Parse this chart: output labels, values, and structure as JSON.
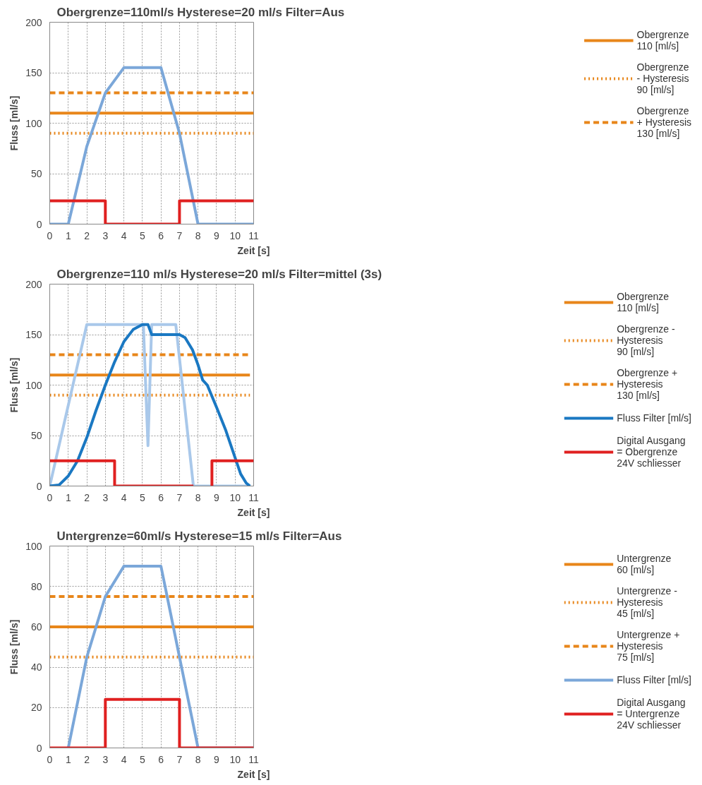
{
  "chart_data": [
    {
      "type": "line",
      "title": "Obergrenze=110ml/s   Hysterese=20 ml/s   Filter=Aus",
      "xlabel": "Zeit [s]",
      "ylabel": "Fluss [ml/s]",
      "xlim": [
        0,
        11
      ],
      "ylim": [
        0,
        200
      ],
      "xticks": [
        0,
        1,
        2,
        3,
        4,
        5,
        6,
        7,
        8,
        9,
        10,
        11
      ],
      "yticks": [
        0,
        50,
        100,
        150,
        200
      ],
      "grid": true,
      "legend": "right",
      "series": [
        {
          "name": "Obergrenze\n110 [ml/s]",
          "color": "#e8861a",
          "line_style": "solid",
          "x": [
            0,
            11
          ],
          "values": [
            110,
            110
          ]
        },
        {
          "name": "Obergrenze\n- Hysteresis\n90 [ml/s]",
          "color": "#e8861a",
          "line_style": "dotted",
          "x": [
            0,
            11
          ],
          "values": [
            90,
            90
          ]
        },
        {
          "name": "Obergrenze\n+ Hysteresis\n130 [ml/s]",
          "color": "#e8861a",
          "line_style": "dashed",
          "x": [
            0,
            11
          ],
          "values": [
            130,
            130
          ]
        },
        {
          "color": "#7ba7d9",
          "line_style": "solid",
          "x": [
            0,
            1,
            2,
            3,
            4,
            6,
            7,
            8,
            11
          ],
          "values": [
            0,
            0,
            77,
            130,
            155,
            155,
            90,
            0,
            0
          ]
        },
        {
          "color": "#e02020",
          "line_style": "solid",
          "x": [
            0,
            3,
            3,
            7,
            7,
            11
          ],
          "values": [
            23,
            23,
            0,
            0,
            23,
            23
          ]
        }
      ]
    },
    {
      "type": "line",
      "title": "Obergrenze=110 ml/s  Hysterese=20 ml/s  Filter=mittel (3s)",
      "xlabel": "Zeit [s]",
      "ylabel": "Fluss [ml/s]",
      "xlim": [
        0,
        11
      ],
      "ylim": [
        0,
        200
      ],
      "xticks": [
        0,
        1,
        2,
        3,
        4,
        5,
        6,
        7,
        8,
        9,
        10,
        11
      ],
      "yticks": [
        0,
        50,
        100,
        150,
        200
      ],
      "grid": true,
      "legend": "right",
      "series": [
        {
          "name": "Obergrenze\n110 [ml/s]",
          "color": "#e8861a",
          "line_style": "solid",
          "x": [
            0,
            10.8
          ],
          "values": [
            110,
            110
          ]
        },
        {
          "name": "Obergrenze -\nHysteresis\n90 [ml/s]",
          "color": "#e8861a",
          "line_style": "dotted",
          "x": [
            0,
            10.8
          ],
          "values": [
            90,
            90
          ]
        },
        {
          "name": "Obergrenze +\nHysteresis\n130 [ml/s]",
          "color": "#e8861a",
          "line_style": "dashed",
          "x": [
            0,
            10.8
          ],
          "values": [
            130,
            130
          ]
        },
        {
          "color": "#a9c8ea",
          "line_style": "solid",
          "x": [
            0,
            2,
            5.05,
            5.3,
            5.5,
            6.8,
            7.75,
            10.8
          ],
          "values": [
            0,
            160,
            160,
            40,
            160,
            160,
            0,
            0
          ]
        },
        {
          "name": "Fluss Filter [ml/s]",
          "color": "#1a78c2",
          "line_style": "solid",
          "x": [
            0,
            0.5,
            1,
            1.5,
            2,
            2.5,
            3,
            3.5,
            4,
            4.5,
            5,
            5.3,
            5.5,
            6,
            7,
            7.3,
            7.7,
            8,
            8.25,
            8.5,
            9,
            9.5,
            10,
            10.3,
            10.6,
            10.8
          ],
          "values": [
            0,
            1,
            10,
            25,
            48,
            75,
            100,
            123,
            143,
            155,
            160,
            160,
            150,
            150,
            150,
            147,
            135,
            120,
            105,
            100,
            78,
            55,
            28,
            12,
            3,
            0
          ]
        },
        {
          "name": "Digital Ausgang\n= Obergrenze\n24V schliesser",
          "color": "#e02020",
          "line_style": "solid",
          "x": [
            0,
            3.5,
            3.5,
            7.75,
            8.0,
            8.75,
            8.75,
            11
          ],
          "values": [
            25,
            25,
            0,
            0,
            null,
            0,
            25,
            25
          ]
        }
      ]
    },
    {
      "type": "line",
      "title": "Untergrenze=60ml/s   Hysterese=15 ml/s   Filter=Aus",
      "xlabel": "Zeit [s]",
      "ylabel": "Fluss [ml/s]",
      "xlim": [
        0,
        11
      ],
      "ylim": [
        0,
        100
      ],
      "xticks": [
        0,
        1,
        2,
        3,
        4,
        5,
        6,
        7,
        8,
        9,
        10,
        11
      ],
      "yticks": [
        0,
        20,
        40,
        60,
        80,
        100
      ],
      "grid": true,
      "legend": "right",
      "series": [
        {
          "name": "Untergrenze\n60 [ml/s]",
          "color": "#e8861a",
          "line_style": "solid",
          "x": [
            0,
            11
          ],
          "values": [
            60,
            60
          ]
        },
        {
          "name": "Untergrenze -\nHysteresis\n45 [ml/s]",
          "color": "#e8861a",
          "line_style": "dotted",
          "x": [
            0,
            11
          ],
          "values": [
            45,
            45
          ]
        },
        {
          "name": "Untergrenze +\nHysteresis\n75 [ml/s]",
          "color": "#e8861a",
          "line_style": "dashed",
          "x": [
            0,
            11
          ],
          "values": [
            75,
            75
          ]
        },
        {
          "name": "Fluss Filter [ml/s]",
          "color": "#7ba7d9",
          "line_style": "solid",
          "x": [
            1,
            2,
            3,
            4,
            6,
            7,
            8,
            11
          ],
          "values": [
            0,
            45,
            75,
            90,
            90,
            45,
            0,
            0
          ]
        },
        {
          "name": "Digital Ausgang\n= Untergrenze\n24V schliesser",
          "color": "#e02020",
          "line_style": "solid",
          "x": [
            0,
            3,
            3,
            7,
            7,
            11
          ],
          "values": [
            0,
            0,
            24,
            24,
            0,
            0
          ]
        }
      ]
    }
  ]
}
